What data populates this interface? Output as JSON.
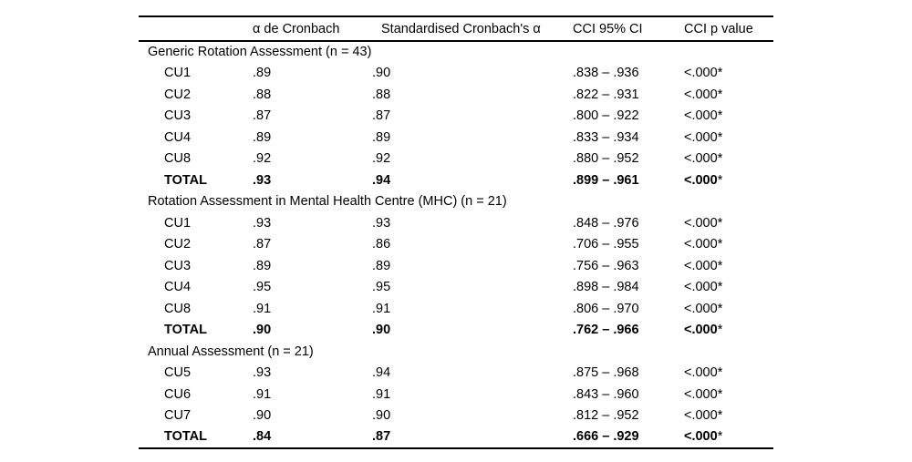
{
  "table": {
    "columns": [
      "",
      "α de Cronbach",
      "Standardised Cronbach's α",
      "CCI 95% CI",
      "CCI p value"
    ],
    "sections": [
      {
        "title": "Generic Rotation Assessment (n = 43)",
        "rows": [
          {
            "label": "CU1",
            "alpha": ".89",
            "std_alpha": ".90",
            "ci": ".838 – .936",
            "p": "<.000*",
            "bold": false
          },
          {
            "label": "CU2",
            "alpha": ".88",
            "std_alpha": ".88",
            "ci": ".822 – .931",
            "p": "<.000*",
            "bold": false
          },
          {
            "label": "CU3",
            "alpha": ".87",
            "std_alpha": ".87",
            "ci": ".800 – .922",
            "p": "<.000*",
            "bold": false
          },
          {
            "label": "CU4",
            "alpha": ".89",
            "std_alpha": ".89",
            "ci": ".833 – .934",
            "p": "<.000*",
            "bold": false
          },
          {
            "label": "CU8",
            "alpha": ".92",
            "std_alpha": ".92",
            "ci": ".880 – .952",
            "p": "<.000*",
            "bold": false
          },
          {
            "label": "TOTAL",
            "alpha": ".93",
            "std_alpha": ".94",
            "ci": ".899 – .961",
            "p": "<.000*",
            "bold": true
          }
        ]
      },
      {
        "title": "Rotation Assessment in Mental Health Centre (MHC) (n = 21)",
        "rows": [
          {
            "label": "CU1",
            "alpha": ".93",
            "std_alpha": ".93",
            "ci": ".848 – .976",
            "p": "<.000*",
            "bold": false
          },
          {
            "label": "CU2",
            "alpha": ".87",
            "std_alpha": ".86",
            "ci": ".706 – .955",
            "p": "<.000*",
            "bold": false
          },
          {
            "label": "CU3",
            "alpha": ".89",
            "std_alpha": ".89",
            "ci": ".756 – .963",
            "p": "<.000*",
            "bold": false
          },
          {
            "label": "CU4",
            "alpha": ".95",
            "std_alpha": ".95",
            "ci": ".898 – .984",
            "p": "<.000*",
            "bold": false
          },
          {
            "label": "CU8",
            "alpha": ".91",
            "std_alpha": ".91",
            "ci": ".806 – .970",
            "p": "<.000*",
            "bold": false
          },
          {
            "label": "TOTAL",
            "alpha": ".90",
            "std_alpha": ".90",
            "ci": ".762 – .966",
            "p": "<.000*",
            "bold": true
          }
        ]
      },
      {
        "title": "Annual Assessment (n = 21)",
        "rows": [
          {
            "label": "CU5",
            "alpha": ".93",
            "std_alpha": ".94",
            "ci": ".875 – .968",
            "p": "<.000*",
            "bold": false
          },
          {
            "label": "CU6",
            "alpha": ".91",
            "std_alpha": ".91",
            "ci": ".843 – .960",
            "p": "<.000*",
            "bold": false
          },
          {
            "label": "CU7",
            "alpha": ".90",
            "std_alpha": ".90",
            "ci": ".812 – .952",
            "p": "<.000*",
            "bold": false
          },
          {
            "label": "TOTAL",
            "alpha": ".84",
            "std_alpha": ".87",
            "ci": ".666 – .929",
            "p": "<.000*",
            "bold": true
          }
        ]
      }
    ]
  }
}
